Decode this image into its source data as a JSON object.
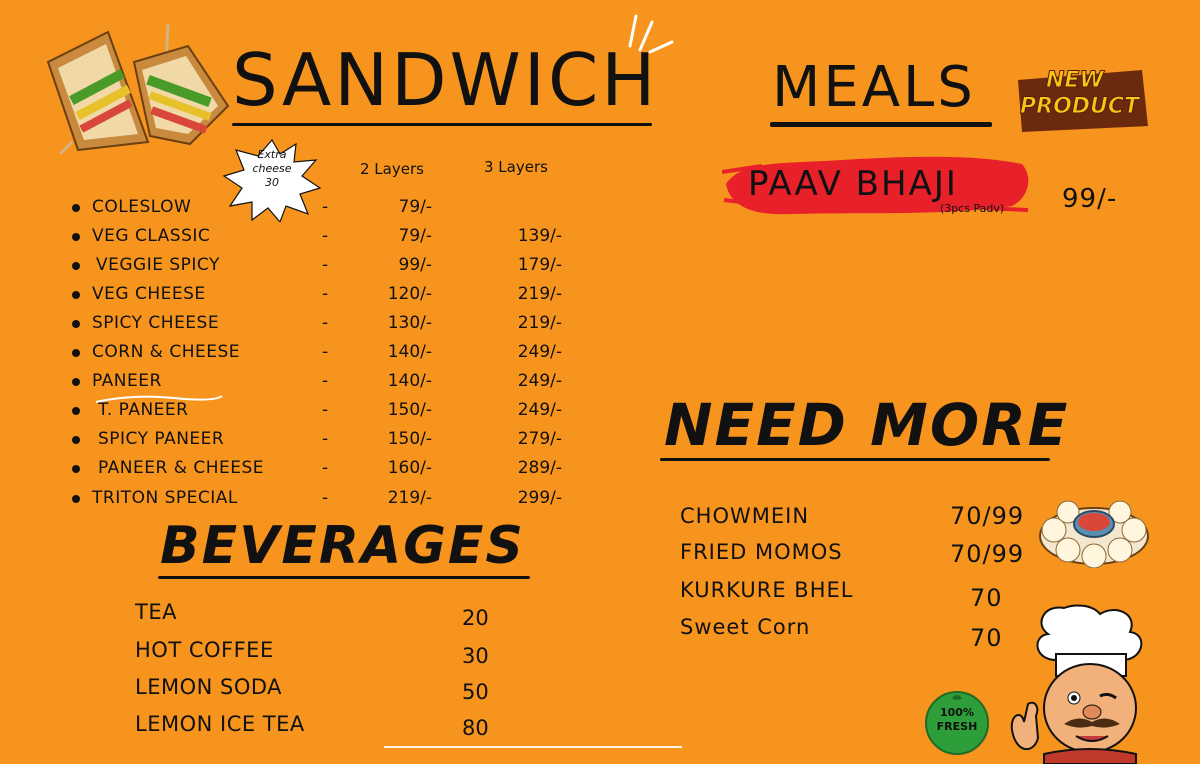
{
  "sandwich": {
    "title": "SANDWICH",
    "col_2": "2 Layers",
    "col_3": "3 Layers",
    "extra_cheese": {
      "line1": "Extra",
      "line2": "cheese",
      "line3": "30"
    },
    "items": [
      {
        "name": "COLESLOW",
        "dash": "-",
        "p2": "79/-",
        "p3": ""
      },
      {
        "name": "VEG CLASSIC",
        "dash": "-",
        "p2": "79/-",
        "p3": "139/-"
      },
      {
        "name": "VEGGIE SPICY",
        "dash": "-",
        "p2": "99/-",
        "p3": "179/-"
      },
      {
        "name": "VEG CHEESE",
        "dash": "-",
        "p2": "120/-",
        "p3": "219/-"
      },
      {
        "name": "SPICY CHEESE",
        "dash": "-",
        "p2": "130/-",
        "p3": "219/-"
      },
      {
        "name": "CORN & CHEESE",
        "dash": "-",
        "p2": "140/-",
        "p3": "249/-"
      },
      {
        "name": "PANEER",
        "dash": "-",
        "p2": "140/-",
        "p3": "249/-"
      },
      {
        "name": "T. PANEER",
        "dash": "-",
        "p2": "150/-",
        "p3": "249/-"
      },
      {
        "name": "SPICY PANEER",
        "dash": "-",
        "p2": "150/-",
        "p3": "279/-"
      },
      {
        "name": "PANEER & CHEESE",
        "dash": "-",
        "p2": "160/-",
        "p3": "289/-"
      },
      {
        "name": "TRITON SPECIAL",
        "dash": "-",
        "p2": "219/-",
        "p3": "299/-"
      }
    ]
  },
  "meals": {
    "title": "MEALS",
    "badge_line1": "NEW",
    "badge_line2": "PRODUCT",
    "item": "PAAV BHAJI",
    "note": "(3pcs Padv)",
    "price": "99/-"
  },
  "need_more": {
    "title": "NEED MORE",
    "items": [
      {
        "name": "CHOWMEIN",
        "price": "70/99"
      },
      {
        "name": "FRIED MOMOS",
        "price": "70/99"
      },
      {
        "name": "KURKURE BHEL",
        "price": "70"
      },
      {
        "name": "Sweet Corn",
        "price": "70"
      }
    ]
  },
  "beverages": {
    "title": "BEVERAGES",
    "items": [
      {
        "name": "TEA",
        "price": "20"
      },
      {
        "name": "HOT COFFEE",
        "price": "30"
      },
      {
        "name": "LEMON SODA",
        "price": "50"
      },
      {
        "name": "LEMON ICE TEA",
        "price": "80"
      }
    ]
  },
  "fresh_badge": {
    "line1": "100%",
    "line2": "FRESH"
  },
  "colors": {
    "background": "#f7941d",
    "text": "#111111",
    "brush": "#e8202a",
    "badge": "#f5c518"
  },
  "icons": [
    "sandwich-icon",
    "starburst-icon",
    "new-product-icon",
    "momos-icon",
    "chef-icon",
    "fresh-badge-icon"
  ]
}
